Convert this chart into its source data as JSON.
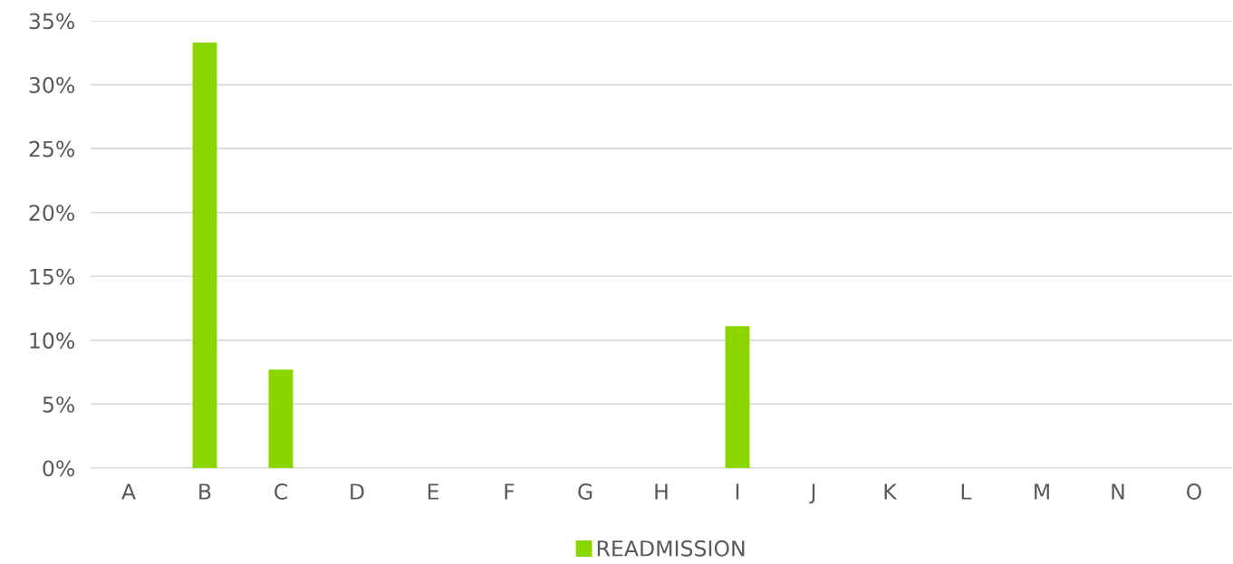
{
  "chart_data": {
    "type": "bar",
    "categories": [
      "A",
      "B",
      "C",
      "D",
      "E",
      "F",
      "G",
      "H",
      "I",
      "J",
      "K",
      "L",
      "M",
      "N",
      "O"
    ],
    "series": [
      {
        "name": "READMISSION",
        "color": "#8cd600",
        "values": [
          0,
          33.3,
          7.7,
          0,
          0,
          0,
          0,
          0,
          11.1,
          0,
          0,
          0,
          0,
          0,
          0
        ]
      }
    ],
    "ylim": [
      0,
      35
    ],
    "yticks": [
      {
        "value": 0,
        "label": "0%"
      },
      {
        "value": 5,
        "label": "5%"
      },
      {
        "value": 10,
        "label": "10%"
      },
      {
        "value": 15,
        "label": "15%"
      },
      {
        "value": 20,
        "label": "20%"
      },
      {
        "value": 25,
        "label": "25%"
      },
      {
        "value": 30,
        "label": "30%"
      },
      {
        "value": 35,
        "label": "35%"
      }
    ],
    "grid": "y",
    "legend": "bottom"
  }
}
